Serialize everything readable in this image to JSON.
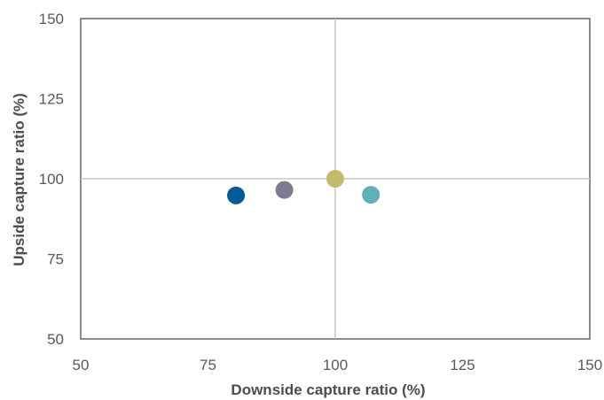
{
  "chart_data": {
    "type": "scatter",
    "title": "",
    "xlabel": "Downside capture ratio  (%)",
    "ylabel": "Upside capture ratio  (%)",
    "xlim": [
      50,
      150
    ],
    "ylim": [
      50,
      150
    ],
    "xticks": [
      "50",
      "75",
      "100",
      "125",
      "150"
    ],
    "yticks": [
      "50",
      "75",
      "100",
      "125",
      "150"
    ],
    "reference_lines": {
      "x": 100,
      "y": 100
    },
    "grid": false,
    "legend": "none",
    "points": [
      {
        "x": 80.5,
        "y": 94.8,
        "color": "#005b96"
      },
      {
        "x": 90.0,
        "y": 96.5,
        "color": "#7b7b92"
      },
      {
        "x": 100.0,
        "y": 100.0,
        "color": "#c4ba6c"
      },
      {
        "x": 107.0,
        "y": 95.0,
        "color": "#62afb8"
      }
    ]
  },
  "colors": {
    "axis": "#4d4d4d",
    "reference_line": "#c8c8c8"
  }
}
